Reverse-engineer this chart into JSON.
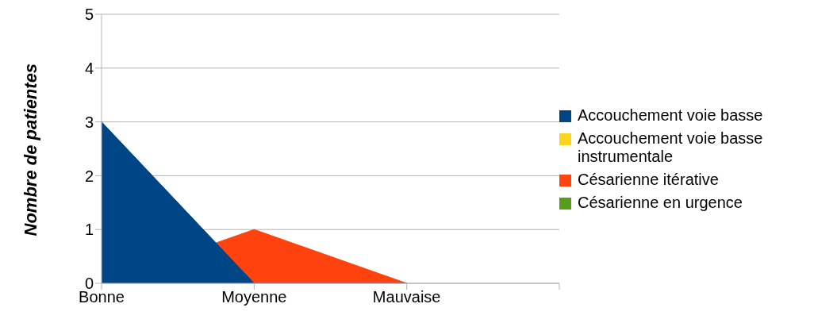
{
  "chart_data": {
    "type": "area",
    "ylabel": "Nombre de patientes",
    "categories": [
      "Bonne",
      "Moyenne",
      "Mauvaise",
      null
    ],
    "series": [
      {
        "name": "Accouchement voie basse",
        "color": "#004586",
        "values": [
          3,
          0,
          0,
          null
        ]
      },
      {
        "name": "Accouchement voie basse instrumentale",
        "color": "#ffd320",
        "values": [
          null,
          null,
          null,
          null
        ]
      },
      {
        "name": "Césarienne itérative",
        "color": "#ff420e",
        "values": [
          0,
          1,
          0,
          null
        ]
      },
      {
        "name": "Césarienne en urgence",
        "color": "#579d1c",
        "values": [
          null,
          null,
          null,
          null
        ]
      }
    ],
    "ylim": [
      0,
      5
    ],
    "yticks": [
      0,
      1,
      2,
      3,
      4,
      5
    ],
    "grid": "y",
    "legend": "right"
  }
}
